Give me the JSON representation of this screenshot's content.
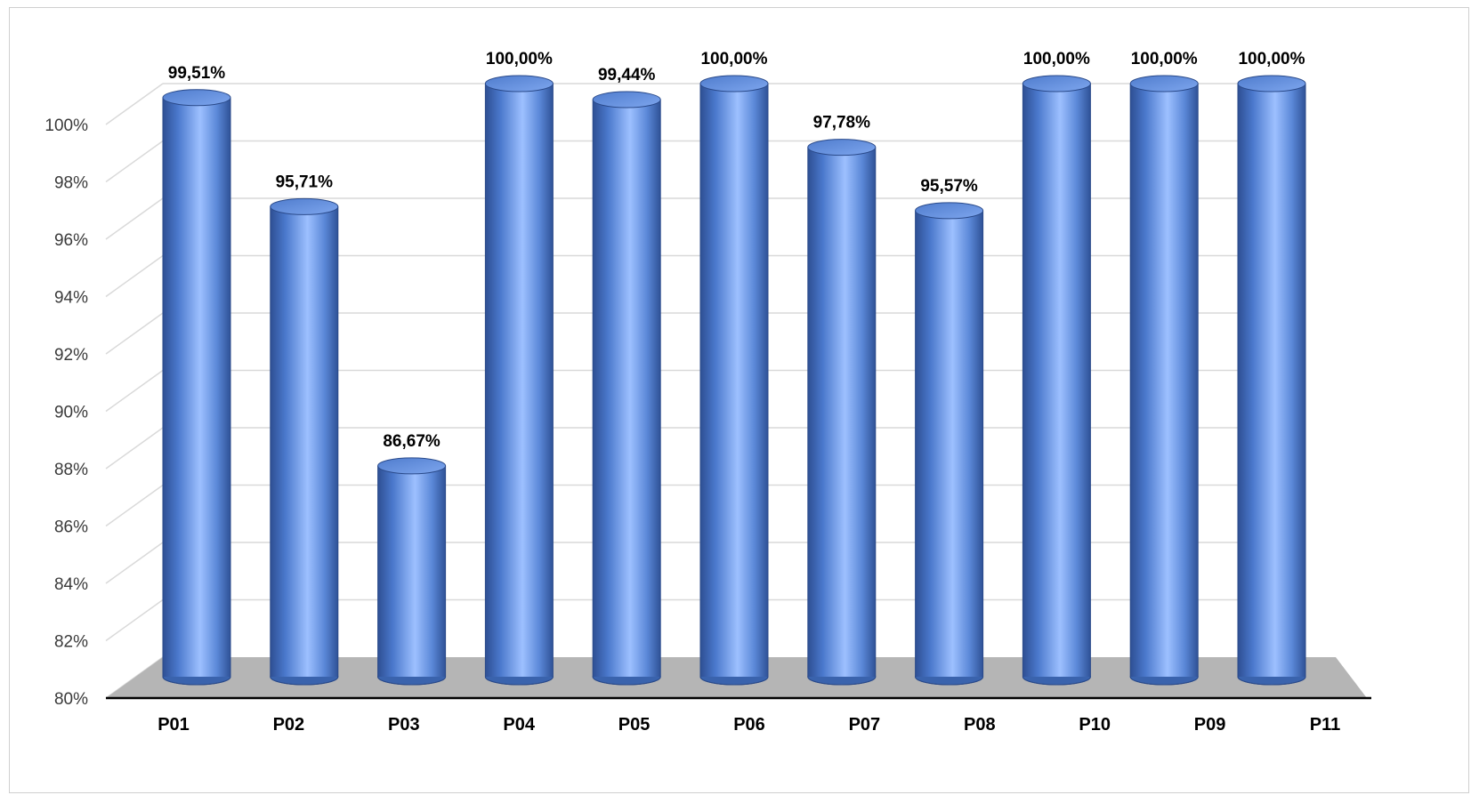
{
  "chart_data": {
    "type": "bar",
    "style": "3d-cylinder",
    "categories": [
      "P01",
      "P02",
      "P03",
      "P04",
      "P05",
      "P06",
      "P07",
      "P08",
      "P10",
      "P09",
      "P11"
    ],
    "values": [
      99.51,
      95.71,
      86.67,
      100.0,
      99.44,
      100.0,
      97.78,
      95.57,
      100.0,
      100.0,
      100.0
    ],
    "data_labels": [
      "99,51%",
      "95,71%",
      "86,67%",
      "100,00%",
      "99,44%",
      "100,00%",
      "97,78%",
      "95,57%",
      "100,00%",
      "100,00%",
      "100,00%"
    ],
    "y_ticks": [
      80,
      82,
      84,
      86,
      88,
      90,
      92,
      94,
      96,
      98,
      100
    ],
    "y_tick_labels": [
      "80%",
      "82%",
      "84%",
      "86%",
      "88%",
      "90%",
      "92%",
      "94%",
      "96%",
      "98%",
      "100%"
    ],
    "ylim": [
      80,
      100
    ],
    "grid": true,
    "legend": "none",
    "title": "",
    "xlabel": "",
    "ylabel": "",
    "colors": {
      "bar_dark": "#2e4f93",
      "bar_mid": "#4a78cc",
      "bar_light": "#9dc0ff",
      "bar_top": "#5f8ee0",
      "floor": "#b5b5b5",
      "grid": "#d9d9d9",
      "axis": "#000000"
    }
  }
}
